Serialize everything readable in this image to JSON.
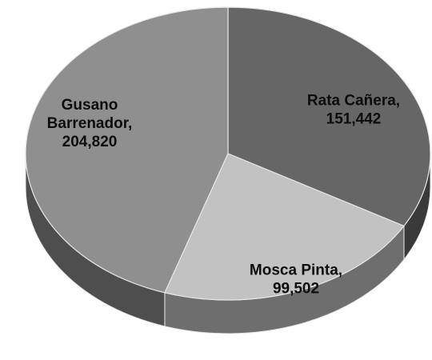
{
  "chart_data": {
    "type": "pie",
    "style": "3d",
    "categories": [
      "Rata Cañera",
      "Mosca Pinta",
      "Gusano Barrenador"
    ],
    "values": [
      151442,
      99502,
      204820
    ],
    "data_labels": [
      [
        "Rata Cañera,",
        "151,442"
      ],
      [
        "Mosca Pinta,",
        "99,502"
      ],
      [
        "Gusano",
        "Barrenador,",
        "204,820"
      ]
    ],
    "colors": [
      "#666666",
      "#c2c2c2",
      "#8f8f8f"
    ],
    "side_colors": [
      "#3a3a3a",
      "#6e6e6e",
      "#4e4e4e"
    ],
    "edge_color": "#e6e6e6",
    "legend": "none"
  }
}
